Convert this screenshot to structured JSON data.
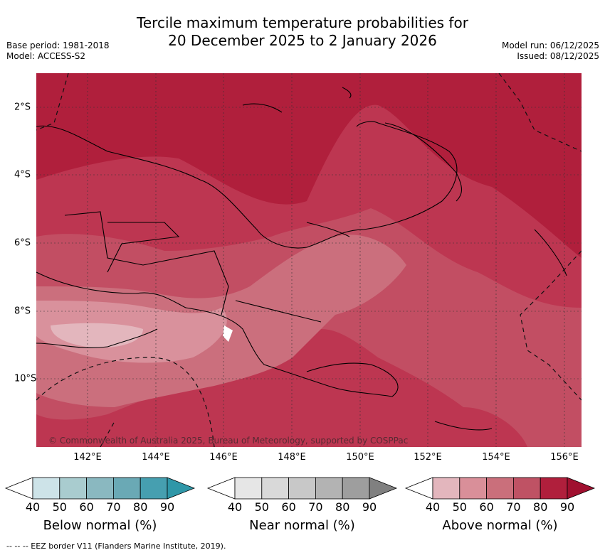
{
  "title_line1": "Tercile maximum temperature probabilities for",
  "title_line2": "20 December 2025 to 2 January 2026",
  "base_period": "Base period: 1981-2018",
  "model": "Model: ACCESS-S2",
  "model_run": "Model run: 06/12/2025",
  "issued": "Issued: 08/12/2025",
  "credit": "© Commonwealth of Australia 2025, Bureau of Meteorology, supported by COSPPac",
  "footer": "--  --  -- EEZ border V11 (Flanders Marine Institute, 2019).",
  "x_ticks": [
    "142°E",
    "144°E",
    "146°E",
    "148°E",
    "150°E",
    "152°E",
    "154°E",
    "156°E"
  ],
  "y_ticks": [
    "2°S",
    "4°S",
    "6°S",
    "8°S",
    "10°S"
  ],
  "colorbars": [
    {
      "label": "Below normal (%)",
      "ticks": [
        "40",
        "50",
        "60",
        "70",
        "80",
        "90"
      ],
      "colors": [
        "#ffffff",
        "#cde3e8",
        "#a9cccf",
        "#8ab8c0",
        "#6aa9b5",
        "#469fb0",
        "#2f97a8"
      ]
    },
    {
      "label": "Near normal (%)",
      "ticks": [
        "40",
        "50",
        "60",
        "70",
        "80",
        "90"
      ],
      "colors": [
        "#ffffff",
        "#e6e6e6",
        "#d9d9d9",
        "#c8c8c8",
        "#b3b3b3",
        "#9e9e9e",
        "#808080"
      ]
    },
    {
      "label": "Above normal (%)",
      "ticks": [
        "40",
        "50",
        "60",
        "70",
        "80",
        "90"
      ],
      "colors": [
        "#ffffff",
        "#e3b6bd",
        "#d98f99",
        "#ca6f7b",
        "#bf5264",
        "#b01f3c",
        "#a0102f"
      ]
    }
  ]
}
